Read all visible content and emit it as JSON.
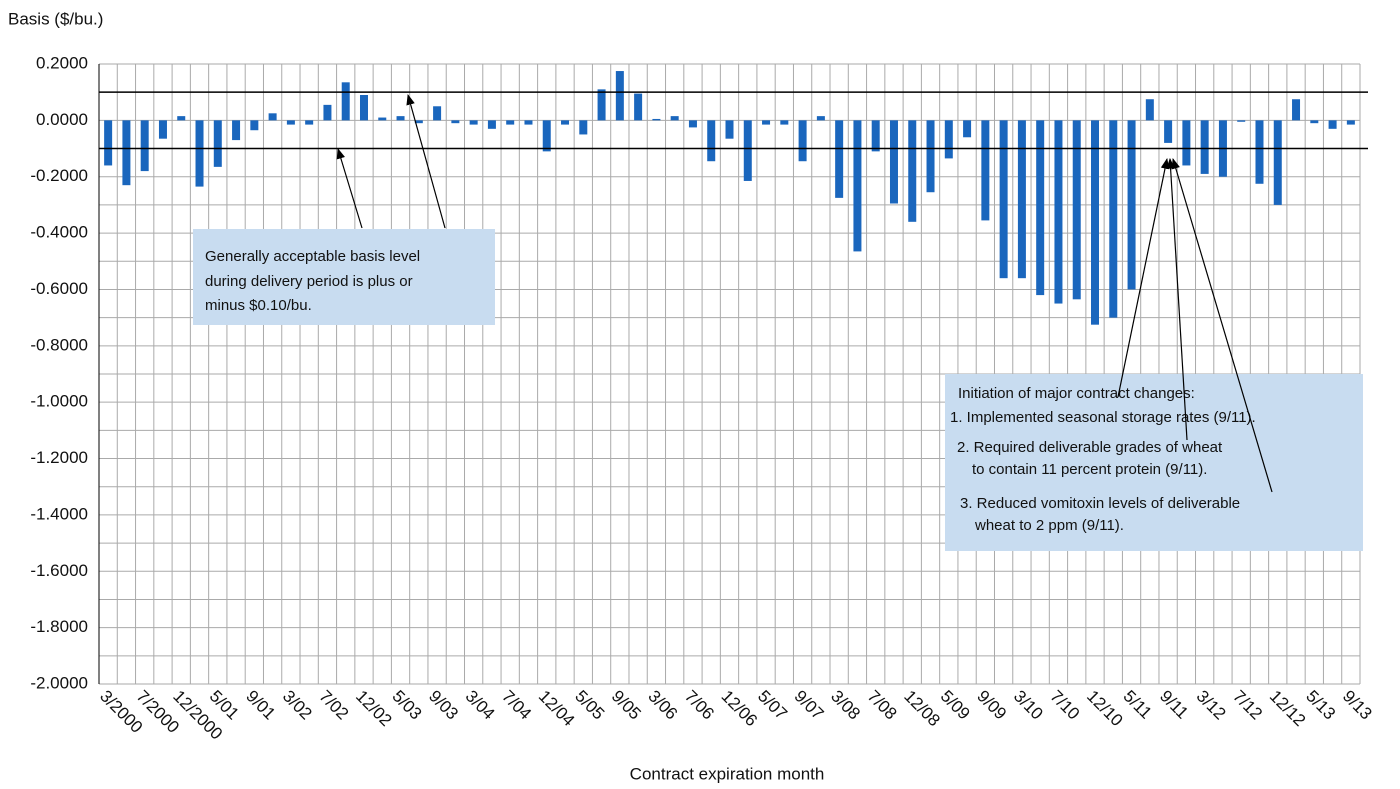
{
  "chart_data": {
    "type": "bar",
    "y_axis_label": "Basis ($/bu.)",
    "x_axis_label": "Contract expiration month",
    "color": "#1a66bd",
    "grid": true,
    "categories": [
      "3/2000",
      null,
      "7/2000",
      null,
      "12/2000",
      null,
      "5/01",
      null,
      "9/01",
      null,
      "3/02",
      null,
      "7/02",
      null,
      "12/02",
      null,
      "5/03",
      null,
      "9/03",
      null,
      "3/04",
      null,
      "7/04",
      null,
      "12/04",
      null,
      "5/05",
      null,
      "9/05",
      null,
      "3/06",
      null,
      "7/06",
      null,
      "12/06",
      null,
      "5/07",
      null,
      "9/07",
      null,
      "3/08",
      null,
      "7/08",
      null,
      "12/08",
      null,
      "5/09",
      null,
      "9/09",
      null,
      "3/10",
      null,
      "7/10",
      null,
      "12/10",
      null,
      "5/11",
      null,
      "9/11",
      null,
      "3/12",
      null,
      "7/12",
      null,
      "12/12",
      null,
      "5/13",
      null,
      "9/13"
    ],
    "values": [
      -0.16,
      -0.23,
      -0.18,
      -0.065,
      0.015,
      -0.235,
      -0.165,
      -0.07,
      -0.035,
      0.025,
      -0.015,
      -0.015,
      0.055,
      0.135,
      0.09,
      0.01,
      0.015,
      -0.01,
      0.05,
      -0.01,
      -0.015,
      -0.03,
      -0.015,
      -0.015,
      -0.11,
      -0.015,
      -0.05,
      0.11,
      0.175,
      0.095,
      0.005,
      0.015,
      -0.025,
      -0.145,
      -0.065,
      -0.215,
      -0.015,
      -0.015,
      -0.145,
      0.015,
      -0.275,
      -0.465,
      -0.11,
      -0.295,
      -0.36,
      -0.255,
      -0.135,
      -0.06,
      -0.355,
      -0.56,
      -0.56,
      -0.62,
      -0.65,
      -0.635,
      -0.725,
      -0.7,
      -0.6,
      0.075,
      -0.08,
      -0.16,
      -0.19,
      -0.2,
      -0.005,
      -0.225,
      -0.3,
      0.075,
      -0.01,
      -0.03,
      -0.015
    ],
    "ylim": [
      -2.0,
      0.2
    ],
    "yticks": [
      {
        "value": 0.2,
        "label": "0.2000"
      },
      {
        "value": 0.0,
        "label": "0.0000"
      },
      {
        "value": -0.2,
        "label": "-0.2000"
      },
      {
        "value": -0.4,
        "label": "-0.4000"
      },
      {
        "value": -0.6,
        "label": "-0.6000"
      },
      {
        "value": -0.8,
        "label": "-0.8000"
      },
      {
        "value": -1.0,
        "label": "-1.0000"
      },
      {
        "value": -1.2,
        "label": "-1.2000"
      },
      {
        "value": -1.4,
        "label": "-1.4000"
      },
      {
        "value": -1.6,
        "label": "-1.6000"
      },
      {
        "value": -1.8,
        "label": "-1.8000"
      },
      {
        "value": -2.0,
        "label": "-2.0000"
      }
    ],
    "reference_lines": [
      0.1,
      -0.1
    ],
    "annotations": [
      {
        "lines": [
          "Generally acceptable basis level",
          "during delivery period is plus or",
          "minus $0.10/bu."
        ]
      },
      {
        "lines": [
          "Initiation of major contract changes:",
          "1. Implemented seasonal storage rates (9/11).",
          "2. Required deliverable grades of wheat",
          "to contain 11 percent protein (9/11).",
          "3. Reduced vomitoxin levels of deliverable",
          "wheat to 2 ppm (9/11)."
        ]
      }
    ]
  }
}
